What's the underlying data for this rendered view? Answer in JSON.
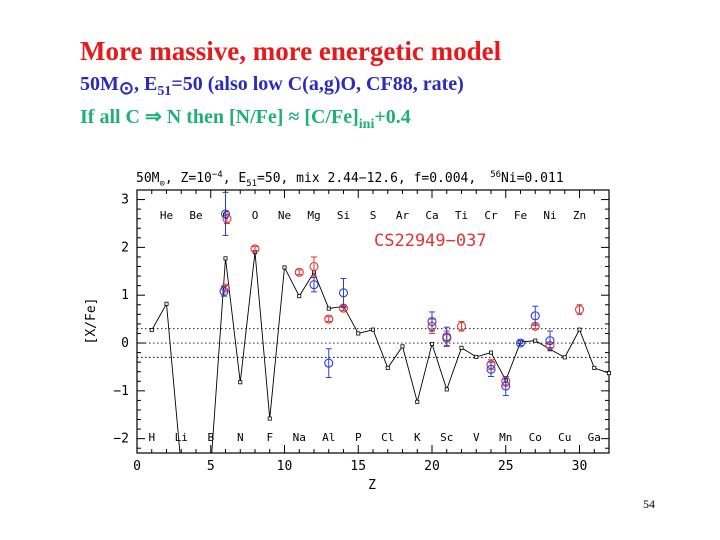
{
  "slide": {
    "title": "More massive, more energetic model",
    "line2_a": "50M",
    "line2_sun": "⊙",
    "line2_b": ", E",
    "line2_sub": "51",
    "line2_c": "=50 (also low C(a,g)O, CF88, rate)",
    "line3_a": "If all C ⇒  N then [N/Fe] ≈ [C/Fe]",
    "line3_sub": "ini",
    "line3_b": "+0.4",
    "page_number": "54"
  },
  "chart_data": {
    "type": "scatter",
    "header": {
      "p1": "50M",
      "p1_sub": "⊙",
      "p2": ", Z=10",
      "p2_sup": "−4",
      "p3": ", E",
      "p3_sub": "51",
      "p4": "=50, mix 2.44−12.6, f=0.004,",
      "ni_sup": "56",
      "ni_rest": "Ni=0.011"
    },
    "star_label": "CS22949−037",
    "xlabel": "Z",
    "ylabel": "[X/Fe]",
    "xlim": [
      0,
      32
    ],
    "ylim": [
      -2.3,
      3.2
    ],
    "xticks": [
      0,
      5,
      10,
      15,
      20,
      25,
      30
    ],
    "yticks": [
      -2,
      -1,
      0,
      1,
      2,
      3
    ],
    "ytick_labels": [
      "−2",
      "−1",
      "0",
      "1",
      "2",
      "3"
    ],
    "elements_top": [
      {
        "z": 2,
        "label": "He"
      },
      {
        "z": 4,
        "label": "Be"
      },
      {
        "z": 6,
        "label": "C"
      },
      {
        "z": 8,
        "label": "O"
      },
      {
        "z": 10,
        "label": "Ne"
      },
      {
        "z": 12,
        "label": "Mg"
      },
      {
        "z": 14,
        "label": "Si"
      },
      {
        "z": 16,
        "label": "S"
      },
      {
        "z": 18,
        "label": "Ar"
      },
      {
        "z": 20,
        "label": "Ca"
      },
      {
        "z": 22,
        "label": "Ti"
      },
      {
        "z": 24,
        "label": "Cr"
      },
      {
        "z": 26,
        "label": "Fe"
      },
      {
        "z": 28,
        "label": "Ni"
      },
      {
        "z": 30,
        "label": "Zn"
      }
    ],
    "elements_bottom": [
      {
        "z": 1,
        "label": "H"
      },
      {
        "z": 3,
        "label": "Li"
      },
      {
        "z": 5,
        "label": "B"
      },
      {
        "z": 7,
        "label": "N"
      },
      {
        "z": 9,
        "label": "F"
      },
      {
        "z": 11,
        "label": "Na"
      },
      {
        "z": 13,
        "label": "Al"
      },
      {
        "z": 15,
        "label": "P"
      },
      {
        "z": 17,
        "label": "Cl"
      },
      {
        "z": 19,
        "label": "K"
      },
      {
        "z": 21,
        "label": "Sc"
      },
      {
        "z": 23,
        "label": "V"
      },
      {
        "z": 25,
        "label": "Mn"
      },
      {
        "z": 27,
        "label": "Co"
      },
      {
        "z": 29,
        "label": "Cu"
      },
      {
        "z": 31,
        "label": "Ga"
      }
    ],
    "reference_lines": [
      0.3,
      0,
      -0.3
    ],
    "model": {
      "z": [
        1,
        2,
        3,
        5,
        6,
        7,
        8,
        9,
        10,
        11,
        12,
        13,
        14,
        15,
        16,
        17,
        18,
        19,
        20,
        21,
        22,
        23,
        24,
        25,
        26,
        27,
        28,
        29,
        30,
        31,
        32
      ],
      "y": [
        0.27,
        0.82,
        -2.6,
        -2.6,
        1.77,
        -0.82,
        1.9,
        -1.58,
        1.58,
        0.98,
        1.48,
        0.72,
        0.77,
        0.2,
        0.28,
        -0.52,
        -0.07,
        -1.23,
        -0.02,
        -0.97,
        -0.1,
        -0.29,
        -0.2,
        -0.78,
        0.02,
        0.05,
        -0.13,
        -0.3,
        0.28,
        -0.52,
        -0.63
      ]
    },
    "series": [
      {
        "color": "#e23434",
        "points": [
          {
            "x": 6,
            "y": 1.15,
            "err": 0.05
          },
          {
            "x": 6.1,
            "y": 2.6,
            "err": 0.1
          },
          {
            "x": 8,
            "y": 1.97,
            "err": 0.05
          },
          {
            "x": 11,
            "y": 1.48,
            "err": 0.05
          },
          {
            "x": 12,
            "y": 1.6,
            "err": 0.2
          },
          {
            "x": 13,
            "y": 0.5,
            "err": 0.05
          },
          {
            "x": 14,
            "y": 0.73,
            "err": 0.05
          },
          {
            "x": 20,
            "y": 0.35,
            "err": 0.15
          },
          {
            "x": 21,
            "y": 0.1,
            "err": 0.15
          },
          {
            "x": 22,
            "y": 0.35,
            "err": 0.1
          },
          {
            "x": 24,
            "y": -0.45,
            "err": 0.1
          },
          {
            "x": 25,
            "y": -0.8,
            "err": 0.1
          },
          {
            "x": 27,
            "y": 0.35,
            "err": 0.05
          },
          {
            "x": 28,
            "y": -0.05,
            "err": 0.05
          },
          {
            "x": 30,
            "y": 0.7,
            "err": 0.1
          }
        ]
      },
      {
        "color": "#2b3fd8",
        "points": [
          {
            "x": 5.9,
            "y": 1.08,
            "err": 0.1
          },
          {
            "x": 6,
            "y": 2.7,
            "err": 0.45
          },
          {
            "x": 12,
            "y": 1.22,
            "err": 0.15
          },
          {
            "x": 13,
            "y": -0.42,
            "err": 0.3
          },
          {
            "x": 14,
            "y": 1.05,
            "err": 0.3
          },
          {
            "x": 20,
            "y": 0.45,
            "err": 0.2
          },
          {
            "x": 21,
            "y": 0.13,
            "err": 0.2
          },
          {
            "x": 24,
            "y": -0.55,
            "err": 0.15
          },
          {
            "x": 25,
            "y": -0.9,
            "err": 0.2
          },
          {
            "x": 26,
            "y": 0,
            "err": 0.05
          },
          {
            "x": 27,
            "y": 0.57,
            "err": 0.2
          },
          {
            "x": 28,
            "y": 0.05,
            "err": 0.2
          }
        ]
      }
    ],
    "colors": {
      "model_line": "#000000",
      "star_label": "#e23434",
      "frame": "#000000"
    }
  }
}
